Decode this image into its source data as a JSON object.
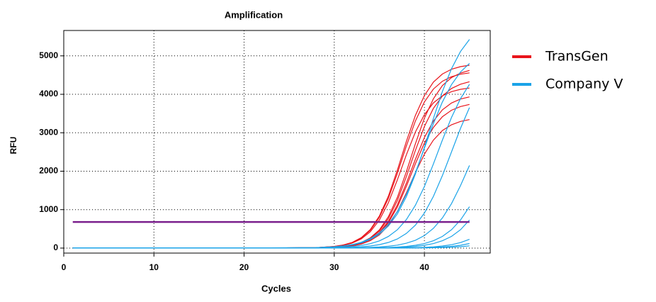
{
  "chart_data": {
    "type": "line",
    "title": "Amplification",
    "x_label": "Cycles",
    "y_label": "RFU",
    "x": [
      1,
      10,
      20,
      28,
      30,
      31,
      32,
      33,
      34,
      35,
      36,
      37,
      38,
      39,
      40,
      41,
      42,
      43,
      44,
      45
    ],
    "xlim": [
      0,
      47.3
    ],
    "ylim": [
      -130,
      5660
    ],
    "xticks": [
      0,
      10,
      20,
      30,
      40
    ],
    "yticks": [
      0,
      1000,
      2000,
      3000,
      4000,
      5000
    ],
    "grid": true,
    "legend": "right",
    "threshold": 680,
    "threshold_color": "#7a1f8c",
    "series": [
      {
        "name": "TransGen",
        "color": "#e8141b",
        "values": [
          [
            0,
            0,
            0,
            12,
            44,
            81,
            149,
            272,
            483,
            833,
            1348,
            2027,
            2773,
            3452,
            3967,
            4317,
            4528,
            4651,
            4719,
            4756
          ],
          [
            0,
            0,
            0,
            12,
            42,
            78,
            143,
            261,
            463,
            799,
            1292,
            1943,
            2657,
            3308,
            3801,
            4137,
            4339,
            4457,
            4523,
            4558
          ],
          [
            0,
            0,
            0,
            6,
            22,
            40,
            74,
            137,
            249,
            443,
            764,
            1236,
            1858,
            2542,
            3164,
            3636,
            3957,
            4151,
            4263,
            4326
          ],
          [
            0,
            0,
            0,
            11,
            38,
            71,
            131,
            238,
            423,
            729,
            1179,
            1774,
            2426,
            3021,
            3471,
            3777,
            3962,
            4069,
            4129,
            4162
          ],
          [
            0,
            0,
            0,
            6,
            20,
            36,
            68,
            124,
            227,
            403,
            694,
            1123,
            1689,
            2311,
            2877,
            3306,
            3597,
            3773,
            3876,
            3932
          ],
          [
            0,
            0,
            0,
            5,
            19,
            35,
            64,
            118,
            215,
            383,
            660,
            1067,
            1605,
            2195,
            2733,
            3140,
            3417,
            3585,
            3682,
            3736
          ],
          [
            0,
            0,
            0,
            5,
            17,
            31,
            57,
            106,
            193,
            342,
            590,
            955,
            1436,
            1964,
            2445,
            2810,
            3058,
            3207,
            3294,
            3343
          ],
          [
            0,
            0,
            0,
            7,
            24,
            43,
            79,
            146,
            266,
            473,
            816,
            1320,
            1985,
            2715,
            3380,
            3884,
            4227,
            4434,
            4554,
            4621
          ]
        ]
      },
      {
        "name": "Company V",
        "color": "#1aa3e8",
        "values": [
          [
            0,
            0,
            0,
            11,
            31,
            52,
            84,
            138,
            224,
            361,
            572,
            888,
            1336,
            1925,
            2627,
            3373,
            4075,
            4664,
            5112,
            5428
          ],
          [
            0,
            0,
            0,
            13,
            35,
            57,
            94,
            152,
            246,
            395,
            620,
            948,
            1398,
            1963,
            2600,
            3237,
            3802,
            4252,
            4580,
            4805
          ],
          [
            0,
            0,
            0,
            6,
            16,
            26,
            43,
            70,
            115,
            187,
            301,
            477,
            740,
            1114,
            1604,
            2189,
            2811,
            3396,
            3887,
            4260
          ],
          [
            0,
            0,
            0,
            3,
            8,
            13,
            21,
            34,
            55,
            90,
            147,
            237,
            380,
            596,
            912,
            1345,
            1888,
            2500,
            3113,
            3656
          ],
          [
            0,
            0,
            0,
            1,
            2,
            4,
            6,
            11,
            18,
            29,
            47,
            77,
            126,
            204,
            326,
            513,
            784,
            1156,
            1623,
            2150
          ],
          [
            0,
            0,
            0,
            0,
            1,
            1,
            2,
            4,
            6,
            10,
            16,
            27,
            44,
            72,
            117,
            190,
            304,
            477,
            730,
            1076
          ],
          [
            0,
            0,
            0,
            0,
            0,
            1,
            1,
            2,
            4,
            6,
            10,
            16,
            27,
            44,
            72,
            117,
            190,
            304,
            477,
            730
          ],
          [
            0,
            0,
            0,
            0,
            0,
            0,
            0,
            1,
            1,
            2,
            3,
            5,
            8,
            12,
            20,
            33,
            54,
            88,
            142,
            228
          ],
          [
            0,
            0,
            0,
            0,
            0,
            0,
            0,
            0,
            1,
            1,
            1,
            2,
            4,
            6,
            10,
            17,
            28,
            45,
            73,
            119
          ],
          [
            0,
            0,
            0,
            0,
            0,
            0,
            0,
            0,
            0,
            0,
            1,
            1,
            2,
            3,
            5,
            8,
            13,
            22,
            36,
            59
          ]
        ]
      }
    ]
  }
}
